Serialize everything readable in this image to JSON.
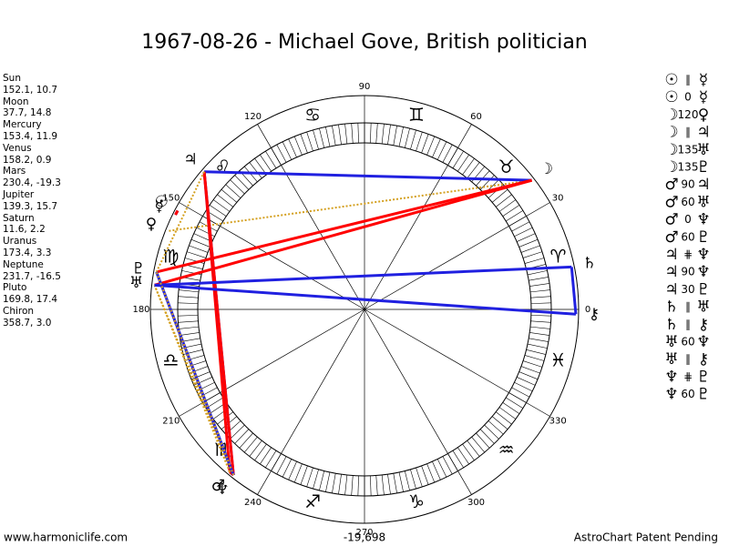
{
  "title": "1967-08-26 - Michael Gove, British politician",
  "planets": [
    {
      "name": "Sun",
      "glyph": "☉",
      "coords": "152.1, 10.7"
    },
    {
      "name": "Moon",
      "glyph": "☽",
      "coords": "37.7, 14.8"
    },
    {
      "name": "Mercury",
      "glyph": "☿",
      "coords": "153.4, 11.9"
    },
    {
      "name": "Venus",
      "glyph": "♀",
      "coords": "158.2, 0.9"
    },
    {
      "name": "Mars",
      "glyph": "♂",
      "coords": "230.4, -19.3"
    },
    {
      "name": "Jupiter",
      "glyph": "♃",
      "coords": "139.3, 15.7"
    },
    {
      "name": "Saturn",
      "glyph": "♄",
      "coords": "11.6, 2.2"
    },
    {
      "name": "Uranus",
      "glyph": "♅",
      "coords": "173.4, 3.3"
    },
    {
      "name": "Neptune",
      "glyph": "♆",
      "coords": "231.7, -16.5"
    },
    {
      "name": "Pluto",
      "glyph": "♇",
      "coords": "169.8, 17.4"
    },
    {
      "name": "Chiron",
      "glyph": "⚷",
      "coords": "358.7, 3.0"
    }
  ],
  "aspects": [
    {
      "p1": "☉",
      "aspect": "∥",
      "p2": "☿"
    },
    {
      "p1": "☉",
      "aspect": "0",
      "p2": "☿"
    },
    {
      "p1": "☽",
      "aspect": "120",
      "p2": "♀"
    },
    {
      "p1": "☽",
      "aspect": "∥",
      "p2": "♃"
    },
    {
      "p1": "☽",
      "aspect": "135",
      "p2": "♅"
    },
    {
      "p1": "☽",
      "aspect": "135",
      "p2": "♇"
    },
    {
      "p1": "♂",
      "aspect": "90",
      "p2": "♃"
    },
    {
      "p1": "♂",
      "aspect": "60",
      "p2": "♅"
    },
    {
      "p1": "♂",
      "aspect": "0",
      "p2": "♆"
    },
    {
      "p1": "♂",
      "aspect": "60",
      "p2": "♇"
    },
    {
      "p1": "♃",
      "aspect": "⋕",
      "p2": "♆"
    },
    {
      "p1": "♃",
      "aspect": "90",
      "p2": "♆"
    },
    {
      "p1": "♃",
      "aspect": "30",
      "p2": "♇"
    },
    {
      "p1": "♄",
      "aspect": "∥",
      "p2": "♅"
    },
    {
      "p1": "♄",
      "aspect": "∥",
      "p2": "⚷"
    },
    {
      "p1": "♅",
      "aspect": "60",
      "p2": "♆"
    },
    {
      "p1": "♅",
      "aspect": "∥",
      "p2": "⚷"
    },
    {
      "p1": "♆",
      "aspect": "⋕",
      "p2": "♇"
    },
    {
      "p1": "♆",
      "aspect": "60",
      "p2": "♇"
    }
  ],
  "aspect_colors": {
    "0": "#ff0000",
    "90": "#ff0000",
    "135": "#ff0000",
    "∥": "#2020e0",
    "⋕": "#2020e0",
    "60": "#d4a020",
    "120": "#d4a020",
    "30": "#d4a020"
  },
  "signs": [
    "♈",
    "♉",
    "♊",
    "♋",
    "♌",
    "♍",
    "♎",
    "♏",
    "♐",
    "♑",
    "♒",
    "♓"
  ],
  "degrees": [
    0,
    30,
    60,
    90,
    120,
    150,
    180,
    210,
    240,
    270,
    300,
    330
  ],
  "footer": {
    "left": "www.harmoniclife.com",
    "center": "-19,698",
    "right": "AstroChart Patent Pending"
  }
}
